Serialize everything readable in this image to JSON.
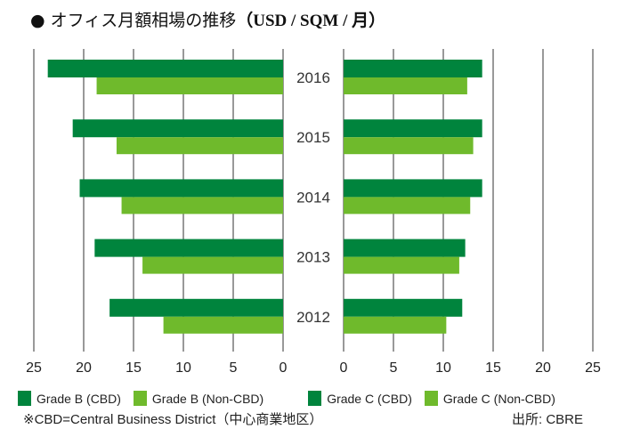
{
  "title": "● オフィス月額相場の推移",
  "unit": "（USD / SQM / 月）",
  "chart_data": [
    {
      "type": "bar",
      "orientation": "horizontal",
      "direction": "right-to-left",
      "categories": [
        "2016",
        "2015",
        "2014",
        "2013",
        "2012"
      ],
      "series": [
        {
          "name": "Grade B (CBD)",
          "color": "#00843d",
          "values": [
            23.6,
            21.1,
            20.4,
            18.9,
            17.4
          ]
        },
        {
          "name": "Grade B (Non-CBD)",
          "color": "#6fba2c",
          "values": [
            18.7,
            16.7,
            16.2,
            14.1,
            12.0
          ]
        }
      ],
      "xlim": [
        0,
        25
      ],
      "ticks": [
        "25",
        "20",
        "15",
        "10",
        "5",
        "0"
      ],
      "grid": true
    },
    {
      "type": "bar",
      "orientation": "horizontal",
      "direction": "left-to-right",
      "categories": [
        "2016",
        "2015",
        "2014",
        "2013",
        "2012"
      ],
      "series": [
        {
          "name": "Grade C (CBD)",
          "color": "#00843d",
          "values": [
            13.9,
            13.9,
            13.9,
            12.2,
            11.9
          ]
        },
        {
          "name": "Grade C (Non-CBD)",
          "color": "#6fba2c",
          "values": [
            12.4,
            13.0,
            12.7,
            11.6,
            10.3
          ]
        }
      ],
      "xlim": [
        0,
        25
      ],
      "ticks": [
        "0",
        "5",
        "10",
        "15",
        "20",
        "25"
      ],
      "grid": true
    }
  ],
  "legend_position": "bottom",
  "footnote": "※CBD=Central Business District（中心商業地区）",
  "source": "出所: CBRE"
}
